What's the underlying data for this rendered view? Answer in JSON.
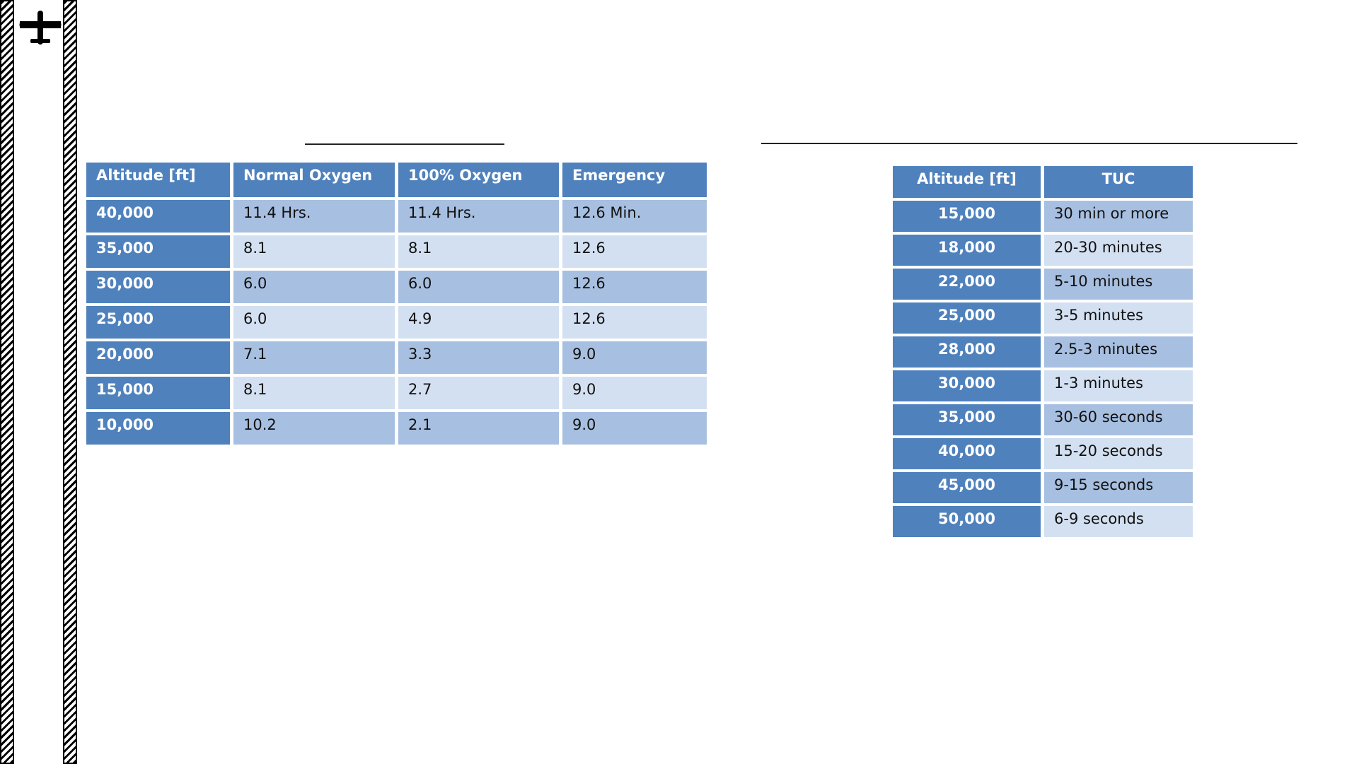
{
  "oxygen_duration_table": {
    "headers": [
      "Altitude [ft]",
      "Normal Oxygen",
      "100% Oxygen",
      "Emergency"
    ],
    "rows": [
      [
        "40,000",
        "11.4 Hrs.",
        "11.4 Hrs.",
        "12.6 Min."
      ],
      [
        "35,000",
        "8.1",
        "8.1",
        "12.6"
      ],
      [
        "30,000",
        "6.0",
        "6.0",
        "12.6"
      ],
      [
        "25,000",
        "6.0",
        "4.9",
        "12.6"
      ],
      [
        "20,000",
        "7.1",
        "3.3",
        "9.0"
      ],
      [
        "15,000",
        "8.1",
        "2.7",
        "9.0"
      ],
      [
        "10,000",
        "10.2",
        "2.1",
        "9.0"
      ]
    ]
  },
  "tuc_table": {
    "headers": [
      "Altitude [ft]",
      "TUC"
    ],
    "rows": [
      [
        "15,000",
        "30 min or more"
      ],
      [
        "18,000",
        "20-30 minutes"
      ],
      [
        "22,000",
        "5-10 minutes"
      ],
      [
        "25,000",
        "3-5 minutes"
      ],
      [
        "28,000",
        "2.5-3 minutes"
      ],
      [
        "30,000",
        "1-3 minutes"
      ],
      [
        "35,000",
        "30-60 seconds"
      ],
      [
        "40,000",
        "15-20 seconds"
      ],
      [
        "45,000",
        "9-15 seconds"
      ],
      [
        "50,000",
        "6-9 seconds"
      ]
    ]
  },
  "colors": {
    "header_blue": "#4f81bd",
    "band_dark": "#a7bfe0",
    "band_light": "#d3e0f1"
  },
  "icons": {
    "plane": "airplane-icon"
  }
}
